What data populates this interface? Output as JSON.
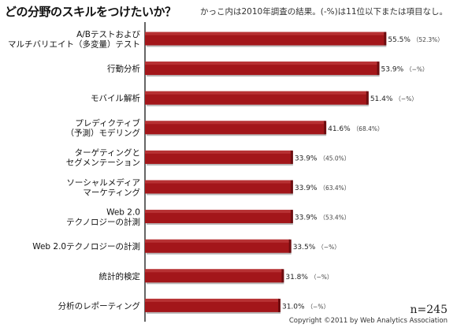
{
  "header": {
    "title": "どの分野のスキルをつけたいか？",
    "note": "かっこ内は2010年調査の結果。(-%)は11位以下または項目なし。"
  },
  "footer": {
    "n_label": "n=245",
    "copyright": "Copyright ©2011 by Web Analytics Association"
  },
  "chart_data": {
    "type": "bar",
    "orientation": "horizontal",
    "categories": [
      [
        "A/Bテストおよび",
        "マルチバリエイト（多変量）テスト"
      ],
      [
        "行動分析"
      ],
      [
        "モバイル解析"
      ],
      [
        "プレディクティブ",
        "（予測）モデリング"
      ],
      [
        "ターゲティングと",
        "セグメンテーション"
      ],
      [
        "ソーシャルメディア",
        "マーケティング"
      ],
      [
        "Web 2.0",
        "テクノロジーの計測"
      ],
      [
        "Web 2.0テクノロジーの計測"
      ],
      [
        "統計的検定"
      ],
      [
        "分析のレポーティング"
      ]
    ],
    "values": [
      55.5,
      53.9,
      51.4,
      41.6,
      33.9,
      33.9,
      33.9,
      33.5,
      31.8,
      31.0
    ],
    "value_labels": [
      "55.5%",
      "53.9%",
      "51.4%",
      "41.6%",
      "33.9%",
      "33.9%",
      "33.9%",
      "33.5%",
      "31.8%",
      "31.0%"
    ],
    "prev_labels": [
      "（52.3%）",
      "（−%）",
      "（−%）",
      "（68.4%）",
      "（45.0%）",
      "（63.4%）",
      "（53.4%）",
      "（−%）",
      "（−%）",
      "（−%）"
    ],
    "xlim": [
      0,
      60
    ],
    "bar_color": "#a3161a",
    "grid": false
  }
}
